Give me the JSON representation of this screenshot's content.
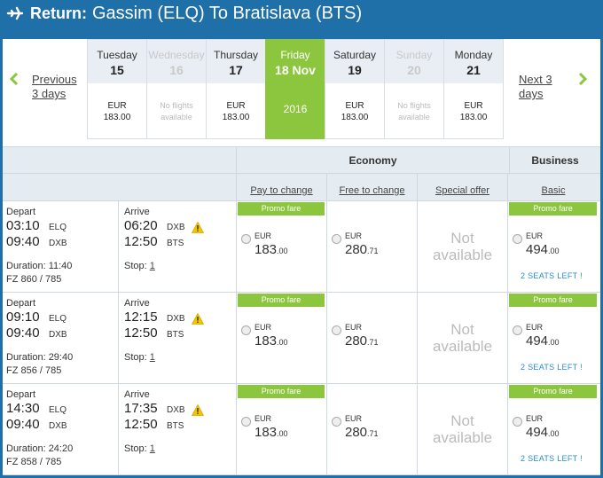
{
  "header": {
    "prefix": "Return:",
    "route": "Gassim (ELQ) To Bratislava (BTS)"
  },
  "nav": {
    "prev_line1": "Previous",
    "prev_line2": "3 days",
    "next_line1": "Next 3",
    "next_line2": "days"
  },
  "days": [
    {
      "name": "Tuesday",
      "num": "15",
      "line1": "EUR",
      "line2": "183.00",
      "state": "normal"
    },
    {
      "name": "Wednesday",
      "num": "16",
      "line1": "No flights",
      "line2": "available",
      "state": "disabled"
    },
    {
      "name": "Thursday",
      "num": "17",
      "line1": "EUR",
      "line2": "183.00",
      "state": "normal"
    },
    {
      "name": "Friday",
      "num": "18 Nov",
      "line1": "2016",
      "line2": "",
      "state": "selected"
    },
    {
      "name": "Saturday",
      "num": "19",
      "line1": "EUR",
      "line2": "183.00",
      "state": "normal"
    },
    {
      "name": "Sunday",
      "num": "20",
      "line1": "No flights",
      "line2": "available",
      "state": "disabled"
    },
    {
      "name": "Monday",
      "num": "21",
      "line1": "EUR",
      "line2": "183.00",
      "state": "normal"
    }
  ],
  "table": {
    "economy": "Economy",
    "business": "Business",
    "sub": [
      "Pay to change",
      "Free to change",
      "Special offer",
      "Basic"
    ]
  },
  "flights": [
    {
      "depart_label": "Depart",
      "dep_time1": "03:10",
      "dep_code1": "ELQ",
      "dep_time2": "09:40",
      "dep_code2": "DXB",
      "duration": "Duration: 11:40",
      "flight_no": "FZ 860 / 785",
      "arrive_label": "Arrive",
      "arr_time1": "06:20",
      "arr_code1": "DXB",
      "arr_time2": "12:50",
      "arr_code2": "BTS",
      "stop_label": "Stop:",
      "stop_count": "1",
      "promo": "Promo fare",
      "cur": "EUR",
      "pay_whole": "183",
      "pay_dec": ".00",
      "free_whole": "280",
      "free_dec": ".71",
      "na_line1": "Not",
      "na_line2": "available",
      "bus_whole": "494",
      "bus_dec": ".00",
      "seats": "2 SEATS LEFT !"
    },
    {
      "depart_label": "Depart",
      "dep_time1": "09:10",
      "dep_code1": "ELQ",
      "dep_time2": "09:40",
      "dep_code2": "DXB",
      "duration": "Duration: 29:40",
      "flight_no": "FZ 856 / 785",
      "arrive_label": "Arrive",
      "arr_time1": "12:15",
      "arr_code1": "DXB",
      "arr_time2": "12:50",
      "arr_code2": "BTS",
      "stop_label": "Stop:",
      "stop_count": "1",
      "promo": "Promo fare",
      "cur": "EUR",
      "pay_whole": "183",
      "pay_dec": ".00",
      "free_whole": "280",
      "free_dec": ".71",
      "na_line1": "Not",
      "na_line2": "available",
      "bus_whole": "494",
      "bus_dec": ".00",
      "seats": "2 SEATS LEFT !"
    },
    {
      "depart_label": "Depart",
      "dep_time1": "14:30",
      "dep_code1": "ELQ",
      "dep_time2": "09:40",
      "dep_code2": "DXB",
      "duration": "Duration: 24:20",
      "flight_no": "FZ 858 / 785",
      "arrive_label": "Arrive",
      "arr_time1": "17:35",
      "arr_code1": "DXB",
      "arr_time2": "12:50",
      "arr_code2": "BTS",
      "stop_label": "Stop:",
      "stop_count": "1",
      "promo": "Promo fare",
      "cur": "EUR",
      "pay_whole": "183",
      "pay_dec": ".00",
      "free_whole": "280",
      "free_dec": ".71",
      "na_line1": "Not",
      "na_line2": "available",
      "bus_whole": "494",
      "bus_dec": ".00",
      "seats": "2 SEATS LEFT !"
    }
  ],
  "icons": {
    "header": "plane-icon",
    "prev": "chevron-left-icon",
    "next": "chevron-right-icon",
    "warning": "warning-icon"
  },
  "colors": {
    "brand_blue": "#1f6fa8",
    "promo_green": "#8cc63f",
    "seats_blue": "#2a8cc7"
  }
}
